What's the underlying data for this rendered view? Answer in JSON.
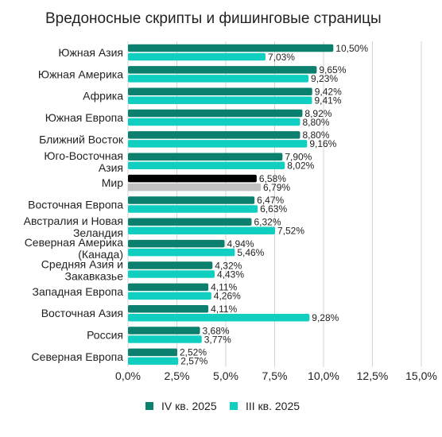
{
  "chart_data": {
    "type": "bar",
    "orientation": "horizontal",
    "title": "Вредоносные скрипты и фишинговые страницы",
    "categories": [
      [
        "Южная Азия"
      ],
      [
        "Южная Америка"
      ],
      [
        "Африка"
      ],
      [
        "Южная Европа"
      ],
      [
        "Ближний Восток"
      ],
      [
        "Юго-Восточная",
        "Азия"
      ],
      [
        "Мир"
      ],
      [
        "Восточная Европа"
      ],
      [
        "Австралия и Новая",
        "Зеландия"
      ],
      [
        "Северная Америка",
        "(Канада)"
      ],
      [
        "Средняя Азия и",
        "Закавказье"
      ],
      [
        "Западная Европа"
      ],
      [
        "Восточная Азия"
      ],
      [
        "Россия"
      ],
      [
        "Северная Европа"
      ]
    ],
    "series": [
      {
        "name": "IV кв. 2025",
        "color": "#0b806e",
        "values": [
          10.5,
          9.65,
          9.42,
          8.92,
          8.8,
          7.9,
          6.58,
          6.47,
          6.32,
          4.94,
          4.32,
          4.11,
          4.11,
          3.68,
          2.52
        ],
        "labels": [
          "10,50%",
          "9,65%",
          "9,42%",
          "8,92%",
          "8,80%",
          "7,90%",
          "6,58%",
          "6,47%",
          "6,32%",
          "4,94%",
          "4,32%",
          "4,11%",
          "4,11%",
          "3,68%",
          "2,52%"
        ]
      },
      {
        "name": "III кв. 2025",
        "color": "#11cfc0",
        "values": [
          7.03,
          9.23,
          9.41,
          8.8,
          9.16,
          8.02,
          6.79,
          6.63,
          7.52,
          5.46,
          4.43,
          4.26,
          9.28,
          3.77,
          2.57
        ],
        "labels": [
          "7,03%",
          "9,23%",
          "9,41%",
          "8,80%",
          "9,16%",
          "8,02%",
          "6,79%",
          "6,63%",
          "7,52%",
          "5,46%",
          "4,43%",
          "4,26%",
          "9,28%",
          "3,77%",
          "2,57%"
        ]
      }
    ],
    "highlight": {
      "category_index": 6,
      "colors": [
        "#000000",
        "#c0c0c0"
      ]
    },
    "xlim": [
      0,
      15
    ],
    "ticks": [
      0,
      2.5,
      5,
      7.5,
      10,
      12.5,
      15
    ],
    "tick_labels": [
      "0,0%",
      "2,5%",
      "5,0%",
      "7,5%",
      "10,0%",
      "12,5%",
      "15,0%"
    ],
    "grid": true,
    "legend_position": "bottom"
  }
}
